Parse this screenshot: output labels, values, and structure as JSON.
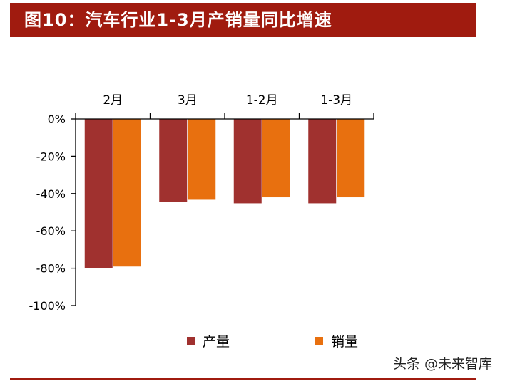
{
  "header": {
    "title": "图10：汽车行业1-3月产销量同比增速"
  },
  "watermark": "头条 @未来智库",
  "colors": {
    "title_bg": "#a01b0f",
    "production": "#a0312f",
    "sales": "#e8700f",
    "axis": "#000000"
  },
  "chart_data": {
    "type": "bar",
    "title": "",
    "xlabel": "",
    "ylabel": "",
    "categories": [
      "2月",
      "3月",
      "1-2月",
      "1-3月"
    ],
    "series": [
      {
        "name": "产量",
        "values": [
          -79.8,
          -44.4,
          -45.2,
          -45.2
        ]
      },
      {
        "name": "销量",
        "values": [
          -79.1,
          -43.3,
          -42.0,
          -42.0
        ]
      }
    ],
    "ylim": [
      -100,
      0
    ],
    "yticks": [
      0,
      -20,
      -40,
      -60,
      -80,
      -100
    ],
    "ytick_labels": [
      "0%",
      "-20%",
      "-40%",
      "-60%",
      "-80%",
      "-100%"
    ],
    "category_axis_position": "top",
    "legend_position": "bottom",
    "grid": false
  }
}
